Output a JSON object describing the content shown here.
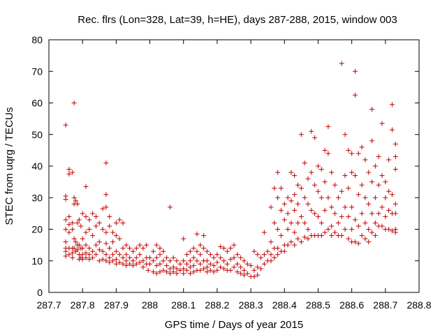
{
  "chart_data": {
    "type": "scatter",
    "title": "Rec. flrs (Lon=328, Lat=39, h=HE), days 287-288, 2015, window 003",
    "xlabel": "GPS time / Days of year 2015",
    "ylabel": "STEC from uqrg / TECUs",
    "xlim": [
      287.7,
      288.8
    ],
    "ylim": [
      0,
      80
    ],
    "xticks": [
      "287.7",
      "287.8",
      "287.9",
      "288",
      "288.1",
      "288.2",
      "288.3",
      "288.4",
      "288.5",
      "288.6",
      "288.7",
      "288.8"
    ],
    "yticks": [
      "0",
      "10",
      "20",
      "30",
      "40",
      "50",
      "60",
      "70",
      "80"
    ],
    "marker": "+",
    "color": "#c00000",
    "grid": false,
    "points": [
      [
        287.75,
        53
      ],
      [
        287.75,
        30.5
      ],
      [
        287.75,
        29.5
      ],
      [
        287.75,
        23
      ],
      [
        287.75,
        20
      ],
      [
        287.75,
        16
      ],
      [
        287.75,
        14
      ],
      [
        287.75,
        13
      ],
      [
        287.75,
        11.5
      ],
      [
        287.76,
        39
      ],
      [
        287.76,
        37.5
      ],
      [
        287.76,
        24
      ],
      [
        287.76,
        21.5
      ],
      [
        287.76,
        19
      ],
      [
        287.76,
        14
      ],
      [
        287.76,
        12
      ],
      [
        287.77,
        38
      ],
      [
        287.77,
        22
      ],
      [
        287.77,
        20
      ],
      [
        287.77,
        14
      ],
      [
        287.77,
        12.5
      ],
      [
        287.77,
        11
      ],
      [
        287.775,
        60
      ],
      [
        287.775,
        30
      ],
      [
        287.775,
        28
      ],
      [
        287.775,
        17
      ],
      [
        287.775,
        14
      ],
      [
        287.78,
        29
      ],
      [
        287.78,
        16
      ],
      [
        287.78,
        13
      ],
      [
        287.785,
        28
      ],
      [
        287.785,
        22
      ],
      [
        287.785,
        15
      ],
      [
        287.785,
        13.5
      ],
      [
        287.79,
        23
      ],
      [
        287.79,
        15
      ],
      [
        287.79,
        12
      ],
      [
        287.79,
        10.5
      ],
      [
        287.795,
        21
      ],
      [
        287.795,
        14
      ],
      [
        287.795,
        11
      ],
      [
        287.8,
        25
      ],
      [
        287.8,
        17
      ],
      [
        287.8,
        14
      ],
      [
        287.8,
        12
      ],
      [
        287.8,
        10.5
      ],
      [
        287.81,
        33.5
      ],
      [
        287.81,
        24
      ],
      [
        287.81,
        19
      ],
      [
        287.81,
        15
      ],
      [
        287.81,
        12.5
      ],
      [
        287.81,
        11
      ],
      [
        287.82,
        23
      ],
      [
        287.82,
        20
      ],
      [
        287.82,
        14
      ],
      [
        287.82,
        12
      ],
      [
        287.82,
        10.5
      ],
      [
        287.83,
        25
      ],
      [
        287.83,
        18
      ],
      [
        287.83,
        13
      ],
      [
        287.83,
        11
      ],
      [
        287.84,
        24
      ],
      [
        287.84,
        21
      ],
      [
        287.84,
        15
      ],
      [
        287.84,
        12
      ],
      [
        287.85,
        22
      ],
      [
        287.85,
        16
      ],
      [
        287.85,
        13.5
      ],
      [
        287.85,
        10
      ],
      [
        287.86,
        26.5
      ],
      [
        287.86,
        20
      ],
      [
        287.86,
        13
      ],
      [
        287.86,
        10.5
      ],
      [
        287.87,
        27
      ],
      [
        287.87,
        31
      ],
      [
        287.87,
        41
      ],
      [
        287.87,
        19
      ],
      [
        287.87,
        15.5
      ],
      [
        287.87,
        12
      ],
      [
        287.87,
        10
      ],
      [
        287.88,
        24
      ],
      [
        287.88,
        21
      ],
      [
        287.88,
        14
      ],
      [
        287.88,
        11
      ],
      [
        287.88,
        9.5
      ],
      [
        287.89,
        19
      ],
      [
        287.89,
        16
      ],
      [
        287.89,
        12
      ],
      [
        287.89,
        10
      ],
      [
        287.9,
        22
      ],
      [
        287.9,
        18
      ],
      [
        287.9,
        13
      ],
      [
        287.9,
        10.5
      ],
      [
        287.9,
        9
      ],
      [
        287.91,
        23
      ],
      [
        287.91,
        17
      ],
      [
        287.91,
        12
      ],
      [
        287.91,
        9.5
      ],
      [
        287.92,
        22
      ],
      [
        287.92,
        14
      ],
      [
        287.92,
        11
      ],
      [
        287.92,
        9
      ],
      [
        287.93,
        15
      ],
      [
        287.93,
        12
      ],
      [
        287.93,
        10
      ],
      [
        287.93,
        8.5
      ],
      [
        287.94,
        14
      ],
      [
        287.94,
        11
      ],
      [
        287.94,
        9
      ],
      [
        287.95,
        13
      ],
      [
        287.95,
        10
      ],
      [
        287.95,
        8.5
      ],
      [
        287.96,
        14
      ],
      [
        287.96,
        11
      ],
      [
        287.96,
        9
      ],
      [
        287.97,
        15
      ],
      [
        287.97,
        12
      ],
      [
        287.97,
        9.5
      ],
      [
        287.98,
        14
      ],
      [
        287.98,
        10
      ],
      [
        287.98,
        8
      ],
      [
        287.99,
        15
      ],
      [
        287.99,
        11
      ],
      [
        287.99,
        9
      ],
      [
        287.995,
        7
      ],
      [
        288.0,
        11
      ],
      [
        288.0,
        9
      ],
      [
        288.01,
        13
      ],
      [
        288.01,
        10
      ],
      [
        288.01,
        6.5
      ],
      [
        288.02,
        15
      ],
      [
        288.02,
        11
      ],
      [
        288.02,
        8.5
      ],
      [
        288.02,
        6
      ],
      [
        288.03,
        14
      ],
      [
        288.03,
        12
      ],
      [
        288.03,
        9
      ],
      [
        288.03,
        6.5
      ],
      [
        288.04,
        13
      ],
      [
        288.04,
        10
      ],
      [
        288.04,
        7
      ],
      [
        288.05,
        11
      ],
      [
        288.05,
        8.5
      ],
      [
        288.05,
        6.5
      ],
      [
        288.06,
        27
      ],
      [
        288.06,
        10
      ],
      [
        288.06,
        7.5
      ],
      [
        288.06,
        6
      ],
      [
        288.07,
        11
      ],
      [
        288.07,
        8
      ],
      [
        288.07,
        6.5
      ],
      [
        288.08,
        10
      ],
      [
        288.08,
        7.5
      ],
      [
        288.08,
        6
      ],
      [
        288.09,
        9
      ],
      [
        288.09,
        7
      ],
      [
        288.1,
        17
      ],
      [
        288.1,
        10
      ],
      [
        288.1,
        7.5
      ],
      [
        288.1,
        6
      ],
      [
        288.11,
        12
      ],
      [
        288.11,
        9
      ],
      [
        288.11,
        7
      ],
      [
        288.12,
        13
      ],
      [
        288.12,
        10
      ],
      [
        288.12,
        8
      ],
      [
        288.12,
        6
      ],
      [
        288.13,
        14
      ],
      [
        288.13,
        11
      ],
      [
        288.13,
        8.5
      ],
      [
        288.13,
        6.5
      ],
      [
        288.14,
        18.5
      ],
      [
        288.14,
        13
      ],
      [
        288.14,
        10
      ],
      [
        288.14,
        7
      ],
      [
        288.15,
        15
      ],
      [
        288.15,
        12
      ],
      [
        288.15,
        9
      ],
      [
        288.15,
        7
      ],
      [
        288.16,
        18
      ],
      [
        288.16,
        14
      ],
      [
        288.16,
        10
      ],
      [
        288.16,
        7.5
      ],
      [
        288.17,
        13
      ],
      [
        288.17,
        10
      ],
      [
        288.17,
        8
      ],
      [
        288.17,
        6.5
      ],
      [
        288.18,
        12
      ],
      [
        288.18,
        9
      ],
      [
        288.18,
        7
      ],
      [
        288.19,
        11
      ],
      [
        288.19,
        8.5
      ],
      [
        288.19,
        6.5
      ],
      [
        288.2,
        12
      ],
      [
        288.2,
        9.5
      ],
      [
        288.2,
        7
      ],
      [
        288.21,
        14.5
      ],
      [
        288.21,
        11
      ],
      [
        288.21,
        8
      ],
      [
        288.22,
        14
      ],
      [
        288.22,
        10
      ],
      [
        288.22,
        7.5
      ],
      [
        288.23,
        13
      ],
      [
        288.23,
        9
      ],
      [
        288.23,
        7
      ],
      [
        288.24,
        14
      ],
      [
        288.24,
        10.5
      ],
      [
        288.24,
        7
      ],
      [
        288.25,
        15
      ],
      [
        288.25,
        11
      ],
      [
        288.25,
        8
      ],
      [
        288.26,
        12
      ],
      [
        288.26,
        9
      ],
      [
        288.26,
        6.5
      ],
      [
        288.27,
        11
      ],
      [
        288.27,
        8
      ],
      [
        288.27,
        6
      ],
      [
        288.28,
        10
      ],
      [
        288.28,
        7
      ],
      [
        288.28,
        5.5
      ],
      [
        288.29,
        9
      ],
      [
        288.29,
        6
      ],
      [
        288.3,
        8.5
      ],
      [
        288.3,
        5
      ],
      [
        288.31,
        13
      ],
      [
        288.31,
        7
      ],
      [
        288.31,
        5
      ],
      [
        288.32,
        12
      ],
      [
        288.32,
        8
      ],
      [
        288.32,
        5.5
      ],
      [
        288.33,
        11
      ],
      [
        288.33,
        7.5
      ],
      [
        288.34,
        19
      ],
      [
        288.34,
        12
      ],
      [
        288.34,
        9
      ],
      [
        288.35,
        13
      ],
      [
        288.35,
        10
      ],
      [
        288.36,
        27
      ],
      [
        288.36,
        16
      ],
      [
        288.36,
        12
      ],
      [
        288.36,
        10
      ],
      [
        288.37,
        33
      ],
      [
        288.37,
        22
      ],
      [
        288.37,
        14
      ],
      [
        288.37,
        11
      ],
      [
        288.38,
        38
      ],
      [
        288.38,
        30
      ],
      [
        288.38,
        20
      ],
      [
        288.38,
        14
      ],
      [
        288.38,
        12
      ],
      [
        288.39,
        33
      ],
      [
        288.39,
        26
      ],
      [
        288.39,
        18
      ],
      [
        288.39,
        13
      ],
      [
        288.4,
        28
      ],
      [
        288.4,
        23
      ],
      [
        288.4,
        15
      ],
      [
        288.4,
        13
      ],
      [
        288.41,
        30
      ],
      [
        288.41,
        25
      ],
      [
        288.41,
        20
      ],
      [
        288.41,
        15
      ],
      [
        288.42,
        38
      ],
      [
        288.42,
        29
      ],
      [
        288.42,
        22
      ],
      [
        288.42,
        16
      ],
      [
        288.43,
        37
      ],
      [
        288.43,
        31
      ],
      [
        288.43,
        26
      ],
      [
        288.43,
        19
      ],
      [
        288.43,
        15
      ],
      [
        288.44,
        34
      ],
      [
        288.44,
        28
      ],
      [
        288.44,
        22
      ],
      [
        288.44,
        17
      ],
      [
        288.45,
        50
      ],
      [
        288.45,
        33
      ],
      [
        288.45,
        24
      ],
      [
        288.45,
        16
      ],
      [
        288.46,
        41
      ],
      [
        288.46,
        30
      ],
      [
        288.46,
        22
      ],
      [
        288.46,
        17.5
      ],
      [
        288.47,
        36
      ],
      [
        288.47,
        28
      ],
      [
        288.47,
        20
      ],
      [
        288.47,
        17
      ],
      [
        288.48,
        51
      ],
      [
        288.48,
        38
      ],
      [
        288.48,
        26
      ],
      [
        288.48,
        18
      ],
      [
        288.49,
        49
      ],
      [
        288.49,
        34
      ],
      [
        288.49,
        25
      ],
      [
        288.49,
        18
      ],
      [
        288.5,
        40
      ],
      [
        288.5,
        32
      ],
      [
        288.5,
        24
      ],
      [
        288.5,
        18
      ],
      [
        288.51,
        39
      ],
      [
        288.51,
        30
      ],
      [
        288.51,
        22
      ],
      [
        288.51,
        18
      ],
      [
        288.52,
        45
      ],
      [
        288.52,
        35
      ],
      [
        288.52,
        26
      ],
      [
        288.52,
        19
      ],
      [
        288.53,
        52.5
      ],
      [
        288.53,
        44
      ],
      [
        288.53,
        30
      ],
      [
        288.53,
        20
      ],
      [
        288.54,
        38
      ],
      [
        288.54,
        27
      ],
      [
        288.54,
        21
      ],
      [
        288.54,
        18
      ],
      [
        288.55,
        34
      ],
      [
        288.55,
        25
      ],
      [
        288.55,
        19
      ],
      [
        288.56,
        30
      ],
      [
        288.56,
        22
      ],
      [
        288.56,
        18
      ],
      [
        288.57,
        72.5
      ],
      [
        288.57,
        32
      ],
      [
        288.57,
        24
      ],
      [
        288.57,
        18
      ],
      [
        288.58,
        50
      ],
      [
        288.58,
        37
      ],
      [
        288.58,
        27
      ],
      [
        288.58,
        20
      ],
      [
        288.59,
        45
      ],
      [
        288.59,
        33
      ],
      [
        288.59,
        24
      ],
      [
        288.59,
        17
      ],
      [
        288.6,
        44
      ],
      [
        288.6,
        38
      ],
      [
        288.6,
        27
      ],
      [
        288.6,
        20
      ],
      [
        288.6,
        16
      ],
      [
        288.61,
        70
      ],
      [
        288.61,
        62.5
      ],
      [
        288.61,
        37
      ],
      [
        288.61,
        23
      ],
      [
        288.61,
        16
      ],
      [
        288.62,
        44
      ],
      [
        288.62,
        31
      ],
      [
        288.62,
        21
      ],
      [
        288.62,
        15.5
      ],
      [
        288.63,
        46
      ],
      [
        288.63,
        34
      ],
      [
        288.63,
        25
      ],
      [
        288.63,
        18
      ],
      [
        288.64,
        42
      ],
      [
        288.64,
        30
      ],
      [
        288.64,
        22
      ],
      [
        288.64,
        17
      ],
      [
        288.65,
        38
      ],
      [
        288.65,
        28
      ],
      [
        288.65,
        20
      ],
      [
        288.65,
        16
      ],
      [
        288.66,
        58
      ],
      [
        288.66,
        48
      ],
      [
        288.66,
        35
      ],
      [
        288.66,
        25
      ],
      [
        288.66,
        19
      ],
      [
        288.67,
        40
      ],
      [
        288.67,
        30
      ],
      [
        288.67,
        22
      ],
      [
        288.67,
        18
      ],
      [
        288.68,
        43
      ],
      [
        288.68,
        34
      ],
      [
        288.68,
        25
      ],
      [
        288.68,
        21
      ],
      [
        288.69,
        53.5
      ],
      [
        288.69,
        37
      ],
      [
        288.69,
        27
      ],
      [
        288.69,
        21
      ],
      [
        288.7,
        35
      ],
      [
        288.7,
        30
      ],
      [
        288.7,
        24
      ],
      [
        288.7,
        20
      ],
      [
        288.71,
        42
      ],
      [
        288.71,
        32
      ],
      [
        288.71,
        26
      ],
      [
        288.71,
        20
      ],
      [
        288.72,
        59.5
      ],
      [
        288.72,
        51.5
      ],
      [
        288.72,
        31
      ],
      [
        288.72,
        25
      ],
      [
        288.72,
        19.5
      ],
      [
        288.73,
        47
      ],
      [
        288.73,
        43
      ],
      [
        288.73,
        39
      ],
      [
        288.73,
        28
      ],
      [
        288.73,
        25
      ],
      [
        288.73,
        20
      ],
      [
        288.73,
        19
      ]
    ]
  }
}
